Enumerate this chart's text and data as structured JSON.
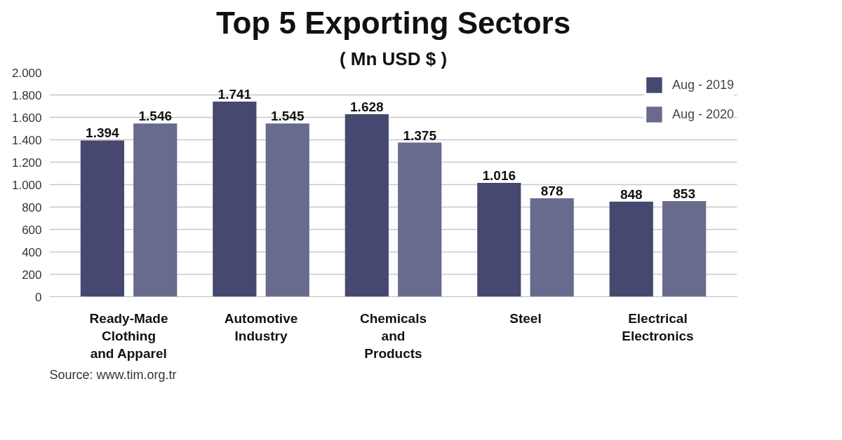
{
  "chart_data": {
    "type": "bar",
    "title": "Top 5 Exporting Sectors",
    "subtitle": "( Mn USD $ )",
    "categories": [
      "Ready-Made\nClothing\nand Apparel",
      "Automotive\nIndustry",
      "Chemicals\nand\nProducts",
      "Steel",
      "Electrical\nElectronics"
    ],
    "series": [
      {
        "name": "Aug - 2019",
        "color": "#46486f",
        "values": [
          1394,
          1741,
          1628,
          1016,
          848
        ],
        "value_labels": [
          "1.394",
          "1.741",
          "1.628",
          "1.016",
          "848"
        ]
      },
      {
        "name": "Aug - 2020",
        "color": "#686a8e",
        "values": [
          1546,
          1545,
          1375,
          878,
          853
        ],
        "value_labels": [
          "1.546",
          "1.545",
          "1.375",
          "878",
          "853"
        ]
      }
    ],
    "ylim": [
      0,
      2000
    ],
    "yticks": [
      {
        "value": 0,
        "label": "0"
      },
      {
        "value": 200,
        "label": "200"
      },
      {
        "value": 400,
        "label": "400"
      },
      {
        "value": 600,
        "label": "600"
      },
      {
        "value": 800,
        "label": "800"
      },
      {
        "value": 1000,
        "label": "1.000"
      },
      {
        "value": 1200,
        "label": "1.200"
      },
      {
        "value": 1400,
        "label": "1.400"
      },
      {
        "value": 1600,
        "label": "1.600"
      },
      {
        "value": 1800,
        "label": "1.800"
      },
      {
        "value": 2000,
        "label": "2.000"
      }
    ],
    "grid": "y",
    "legend": "top right",
    "annotations": [
      "Source: www.tim.org.tr"
    ]
  }
}
